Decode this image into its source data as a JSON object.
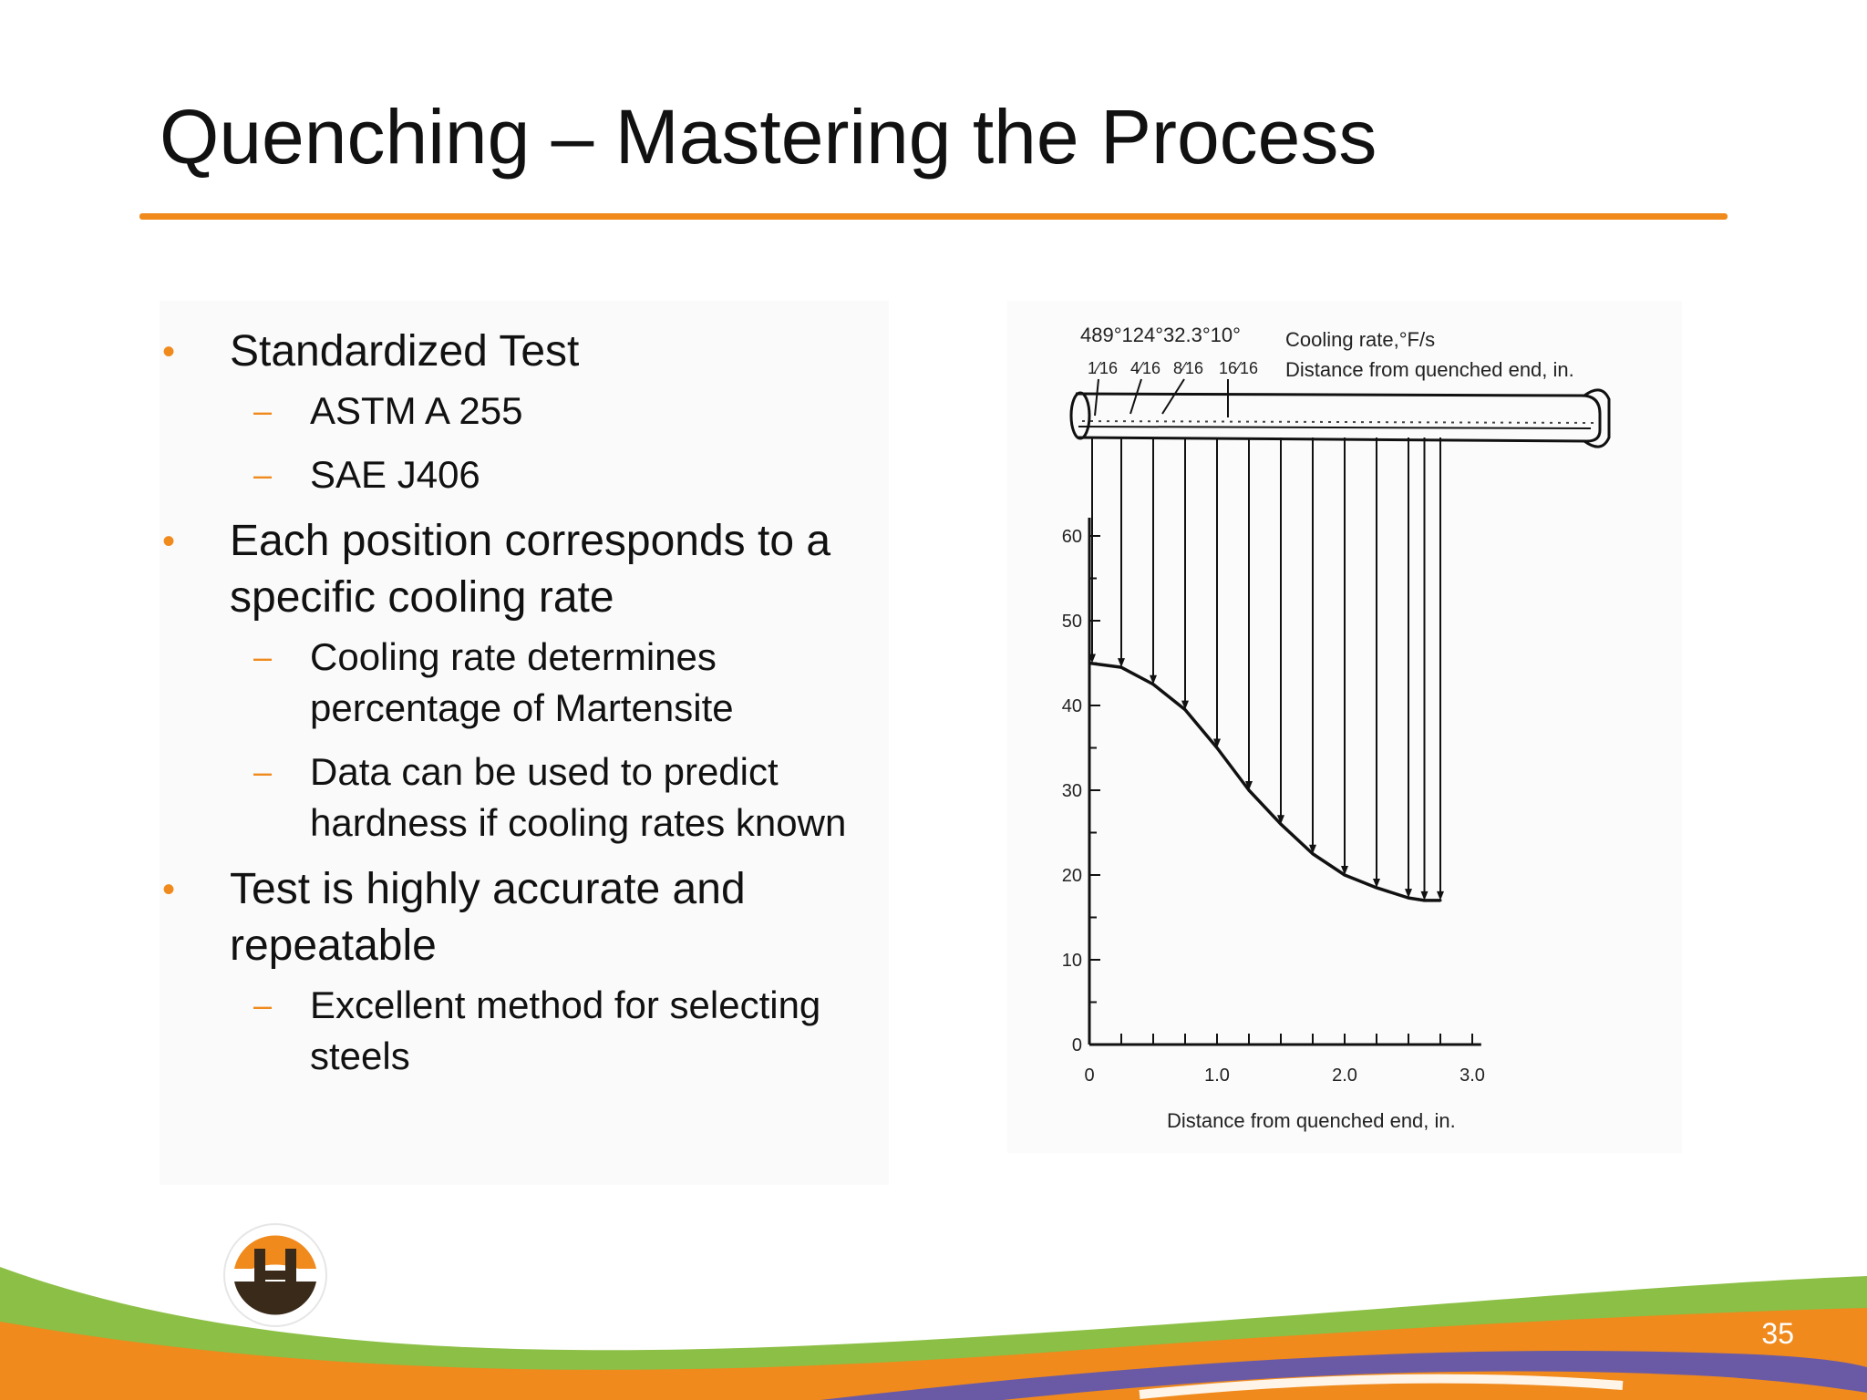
{
  "slide": {
    "title": "Quenching – Mastering the Process",
    "page_number": "35"
  },
  "bullets": [
    {
      "text": "Standardized Test",
      "subs": [
        "ASTM A 255",
        "SAE J406"
      ]
    },
    {
      "text": "Each position corresponds to a specific cooling rate",
      "subs": [
        "Cooling rate determines percentage of Martensite",
        "Data can be used to predict hardness if cooling rates known"
      ]
    },
    {
      "text": "Test is highly accurate and repeatable",
      "subs": [
        "Excellent method for selecting steels"
      ]
    }
  ],
  "markers": {
    "bullet": "•",
    "sub": "–"
  },
  "figure": {
    "top_rates": "489°124°32.3°10°",
    "top_rates_label": "Cooling rate,°F/s",
    "fractions": [
      "1⁄16",
      "4⁄16",
      "8⁄16",
      "16⁄16"
    ],
    "fractions_label": "Distance from quenched end, in.",
    "x_axis_label": "Distance from quenched end, in."
  },
  "colors": {
    "accent": "#f08a1c",
    "green": "#7fb23a",
    "purple": "#6a5aa6"
  },
  "chart_data": {
    "type": "line",
    "x": [
      0,
      0.25,
      0.5,
      0.75,
      1.0,
      1.25,
      1.5,
      1.75,
      2.0,
      2.25,
      2.5,
      2.625,
      2.75
    ],
    "y": [
      45,
      44.5,
      42.5,
      39.5,
      35,
      30,
      26,
      22.5,
      20,
      18.5,
      17.3,
      17,
      17
    ],
    "x_ticks": [
      "0",
      "1.0",
      "2.0",
      "3.0"
    ],
    "x_tick_values": [
      0,
      1.0,
      2.0,
      3.0
    ],
    "y_ticks": [
      "0",
      "10",
      "20",
      "30",
      "40",
      "50",
      "60"
    ],
    "y_tick_values": [
      0,
      10,
      20,
      30,
      40,
      50,
      60
    ],
    "xlabel": "Distance from quenched end, in.",
    "ylabel": "",
    "xlim": [
      0,
      3.0
    ],
    "ylim": [
      0,
      60
    ],
    "grid": false
  }
}
